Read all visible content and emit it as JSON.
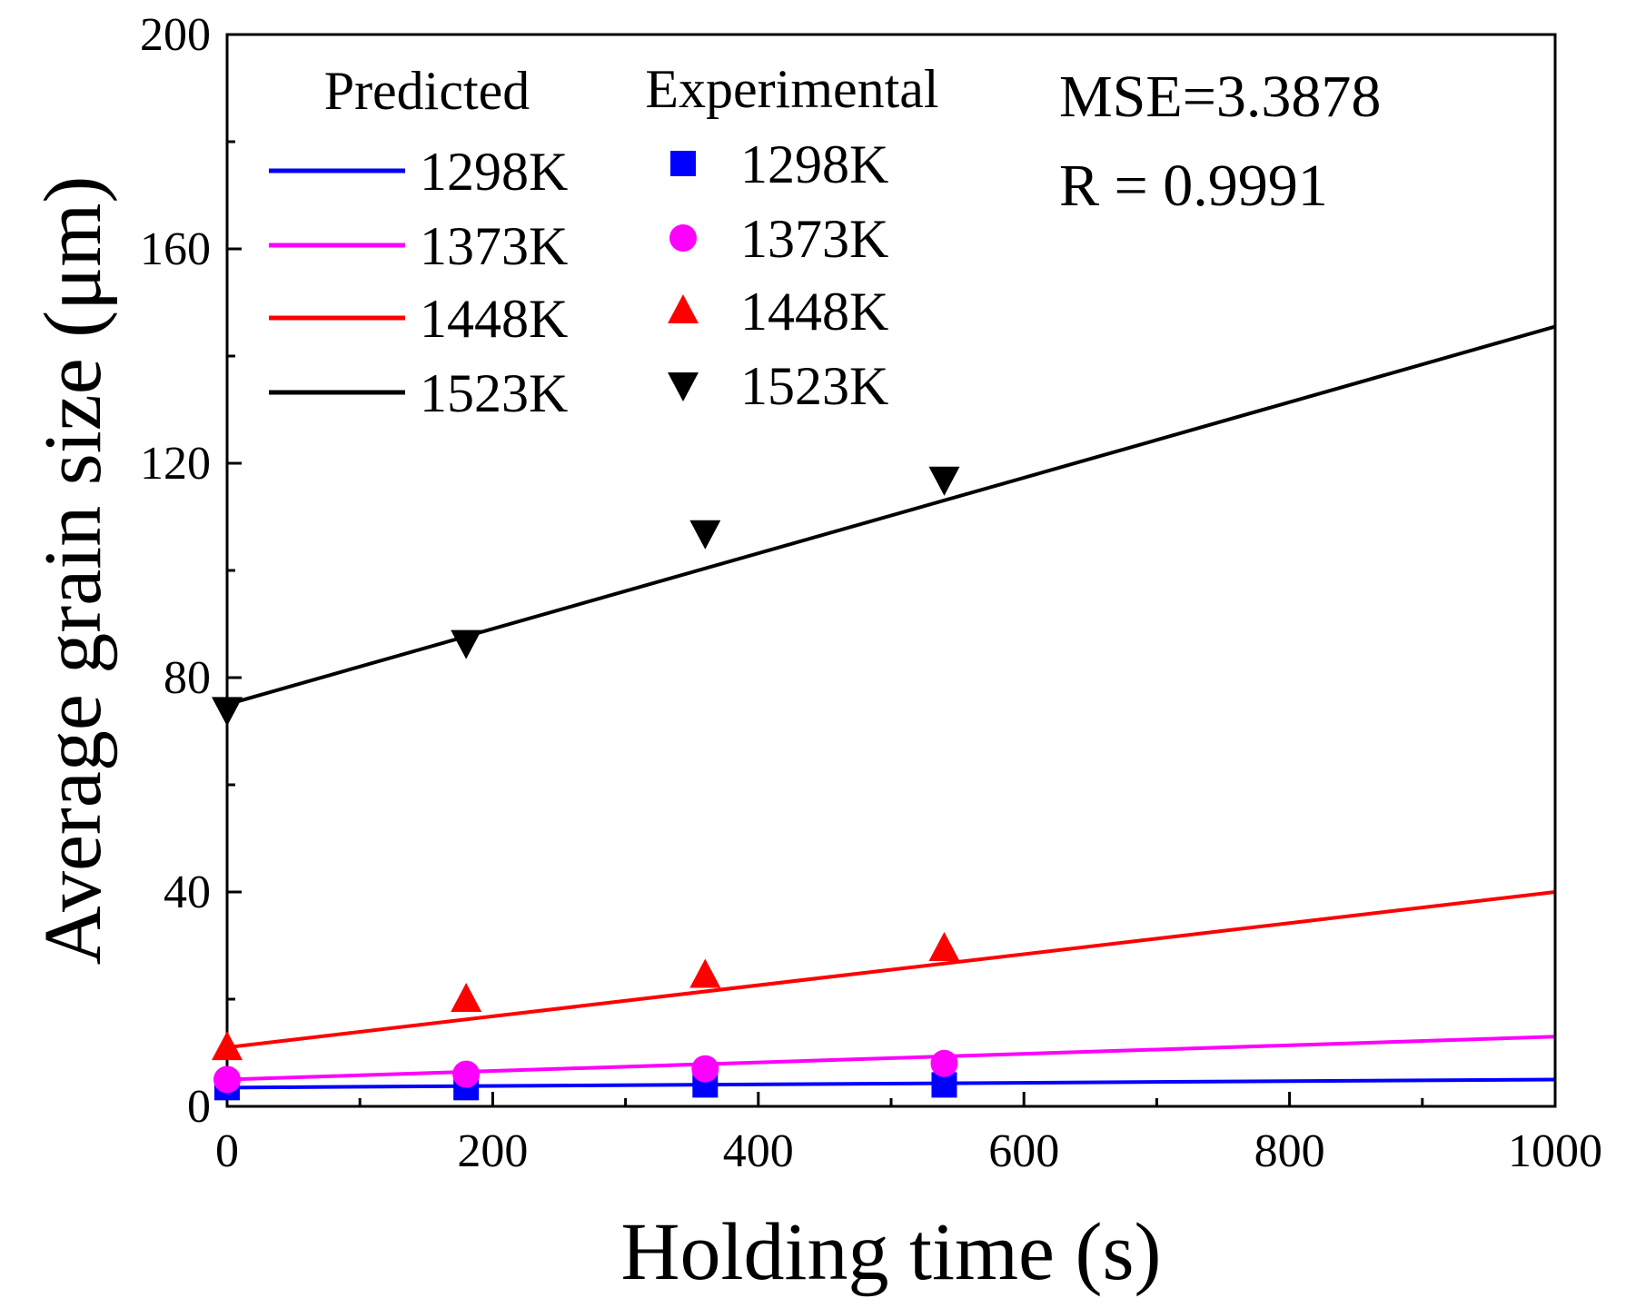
{
  "chart_data": {
    "type": "line",
    "xlabel": "Holding time (s)",
    "ylabel": "Average grain size (μm)",
    "xlim": [
      0,
      1000
    ],
    "ylim": [
      0,
      200
    ],
    "x_ticks": [
      0,
      200,
      400,
      600,
      800,
      1000
    ],
    "y_ticks": [
      0,
      40,
      80,
      120,
      160,
      200
    ],
    "x_tick_labels": [
      "0",
      "200",
      "400",
      "600",
      "800",
      "1000"
    ],
    "y_tick_labels": [
      "0",
      "40",
      "80",
      "120",
      "160",
      "200"
    ],
    "x_minor_step": 100,
    "y_minor_step": 20,
    "grid": false,
    "legend": {
      "placement": "top-left",
      "predicted_title": "Predicted",
      "experimental_title": "Experimental"
    },
    "annotations": [
      "MSE=3.3878",
      "R = 0.9991"
    ],
    "predicted": [
      {
        "name": "1298K",
        "color": "#0000ff",
        "x": [
          0,
          1000
        ],
        "y": [
          3.5,
          5.0
        ]
      },
      {
        "name": "1373K",
        "color": "#ff00ff",
        "x": [
          0,
          1000
        ],
        "y": [
          5.0,
          13.0
        ]
      },
      {
        "name": "1448K",
        "color": "#ff0000",
        "x": [
          0,
          1000
        ],
        "y": [
          11.0,
          40.0
        ]
      },
      {
        "name": "1523K",
        "color": "#000000",
        "x": [
          0,
          1000
        ],
        "y": [
          75.0,
          145.5
        ]
      }
    ],
    "experimental": [
      {
        "name": "1298K",
        "color": "#0000ff",
        "marker": "square",
        "x": [
          0,
          180,
          360,
          540
        ],
        "y": [
          3.5,
          3.5,
          4.0,
          4.0
        ]
      },
      {
        "name": "1373K",
        "color": "#ff00ff",
        "marker": "circle",
        "x": [
          0,
          180,
          360,
          540
        ],
        "y": [
          5.0,
          6.0,
          7.0,
          8.0
        ]
      },
      {
        "name": "1448K",
        "color": "#ff0000",
        "marker": "triangle-up",
        "x": [
          0,
          180,
          360,
          540
        ],
        "y": [
          11.0,
          20.0,
          24.5,
          29.5
        ]
      },
      {
        "name": "1523K",
        "color": "#000000",
        "marker": "triangle-down",
        "x": [
          0,
          180,
          360,
          540
        ],
        "y": [
          74.0,
          86.5,
          107.0,
          117.0
        ]
      }
    ]
  }
}
